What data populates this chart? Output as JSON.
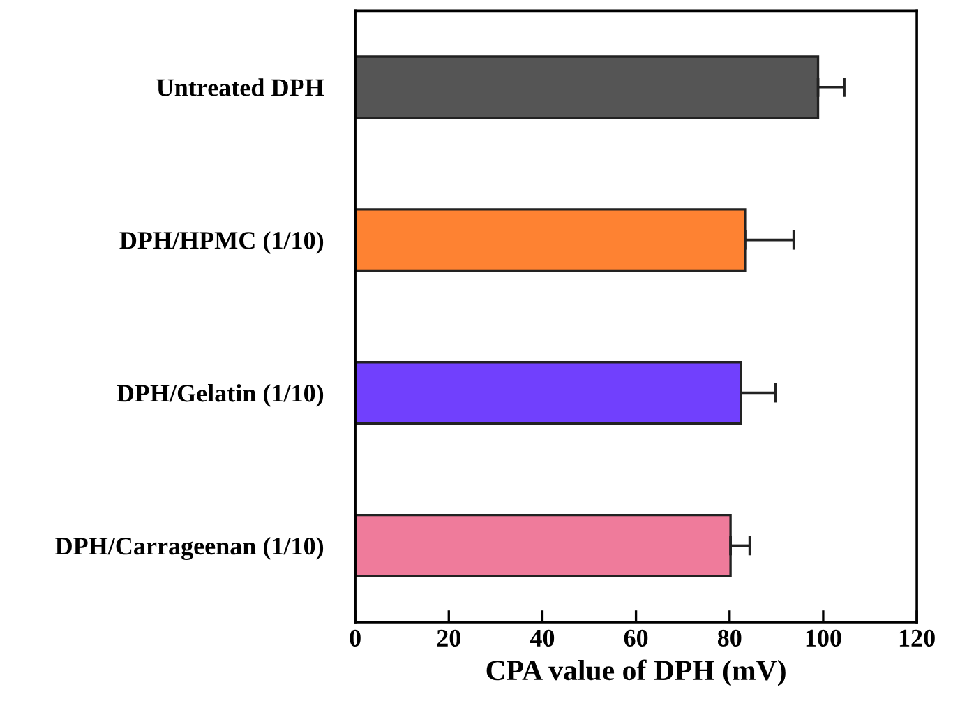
{
  "chart_data": {
    "type": "bar",
    "orientation": "horizontal",
    "xlabel": "CPA value of DPH (mV)",
    "categories": [
      "Untreated DPH",
      "DPH/HPMC (1/10)",
      "DPH/Gelatin (1/10)",
      "DPH/Carrageenan (1/10)"
    ],
    "values": [
      98.9,
      83.3,
      82.4,
      80.2
    ],
    "colors": [
      "#555555",
      "#fe8232",
      "#7140fd",
      "#ef7b9b"
    ],
    "errors": [
      [
        98.9,
        104.5
      ],
      [
        83.3,
        93.7
      ],
      [
        82.4,
        89.8
      ],
      [
        80.2,
        84.3
      ]
    ],
    "xlim": [
      0,
      120
    ],
    "xticks": [
      0,
      20,
      40,
      60,
      80,
      100,
      120
    ],
    "grid": false,
    "legend": false
  }
}
